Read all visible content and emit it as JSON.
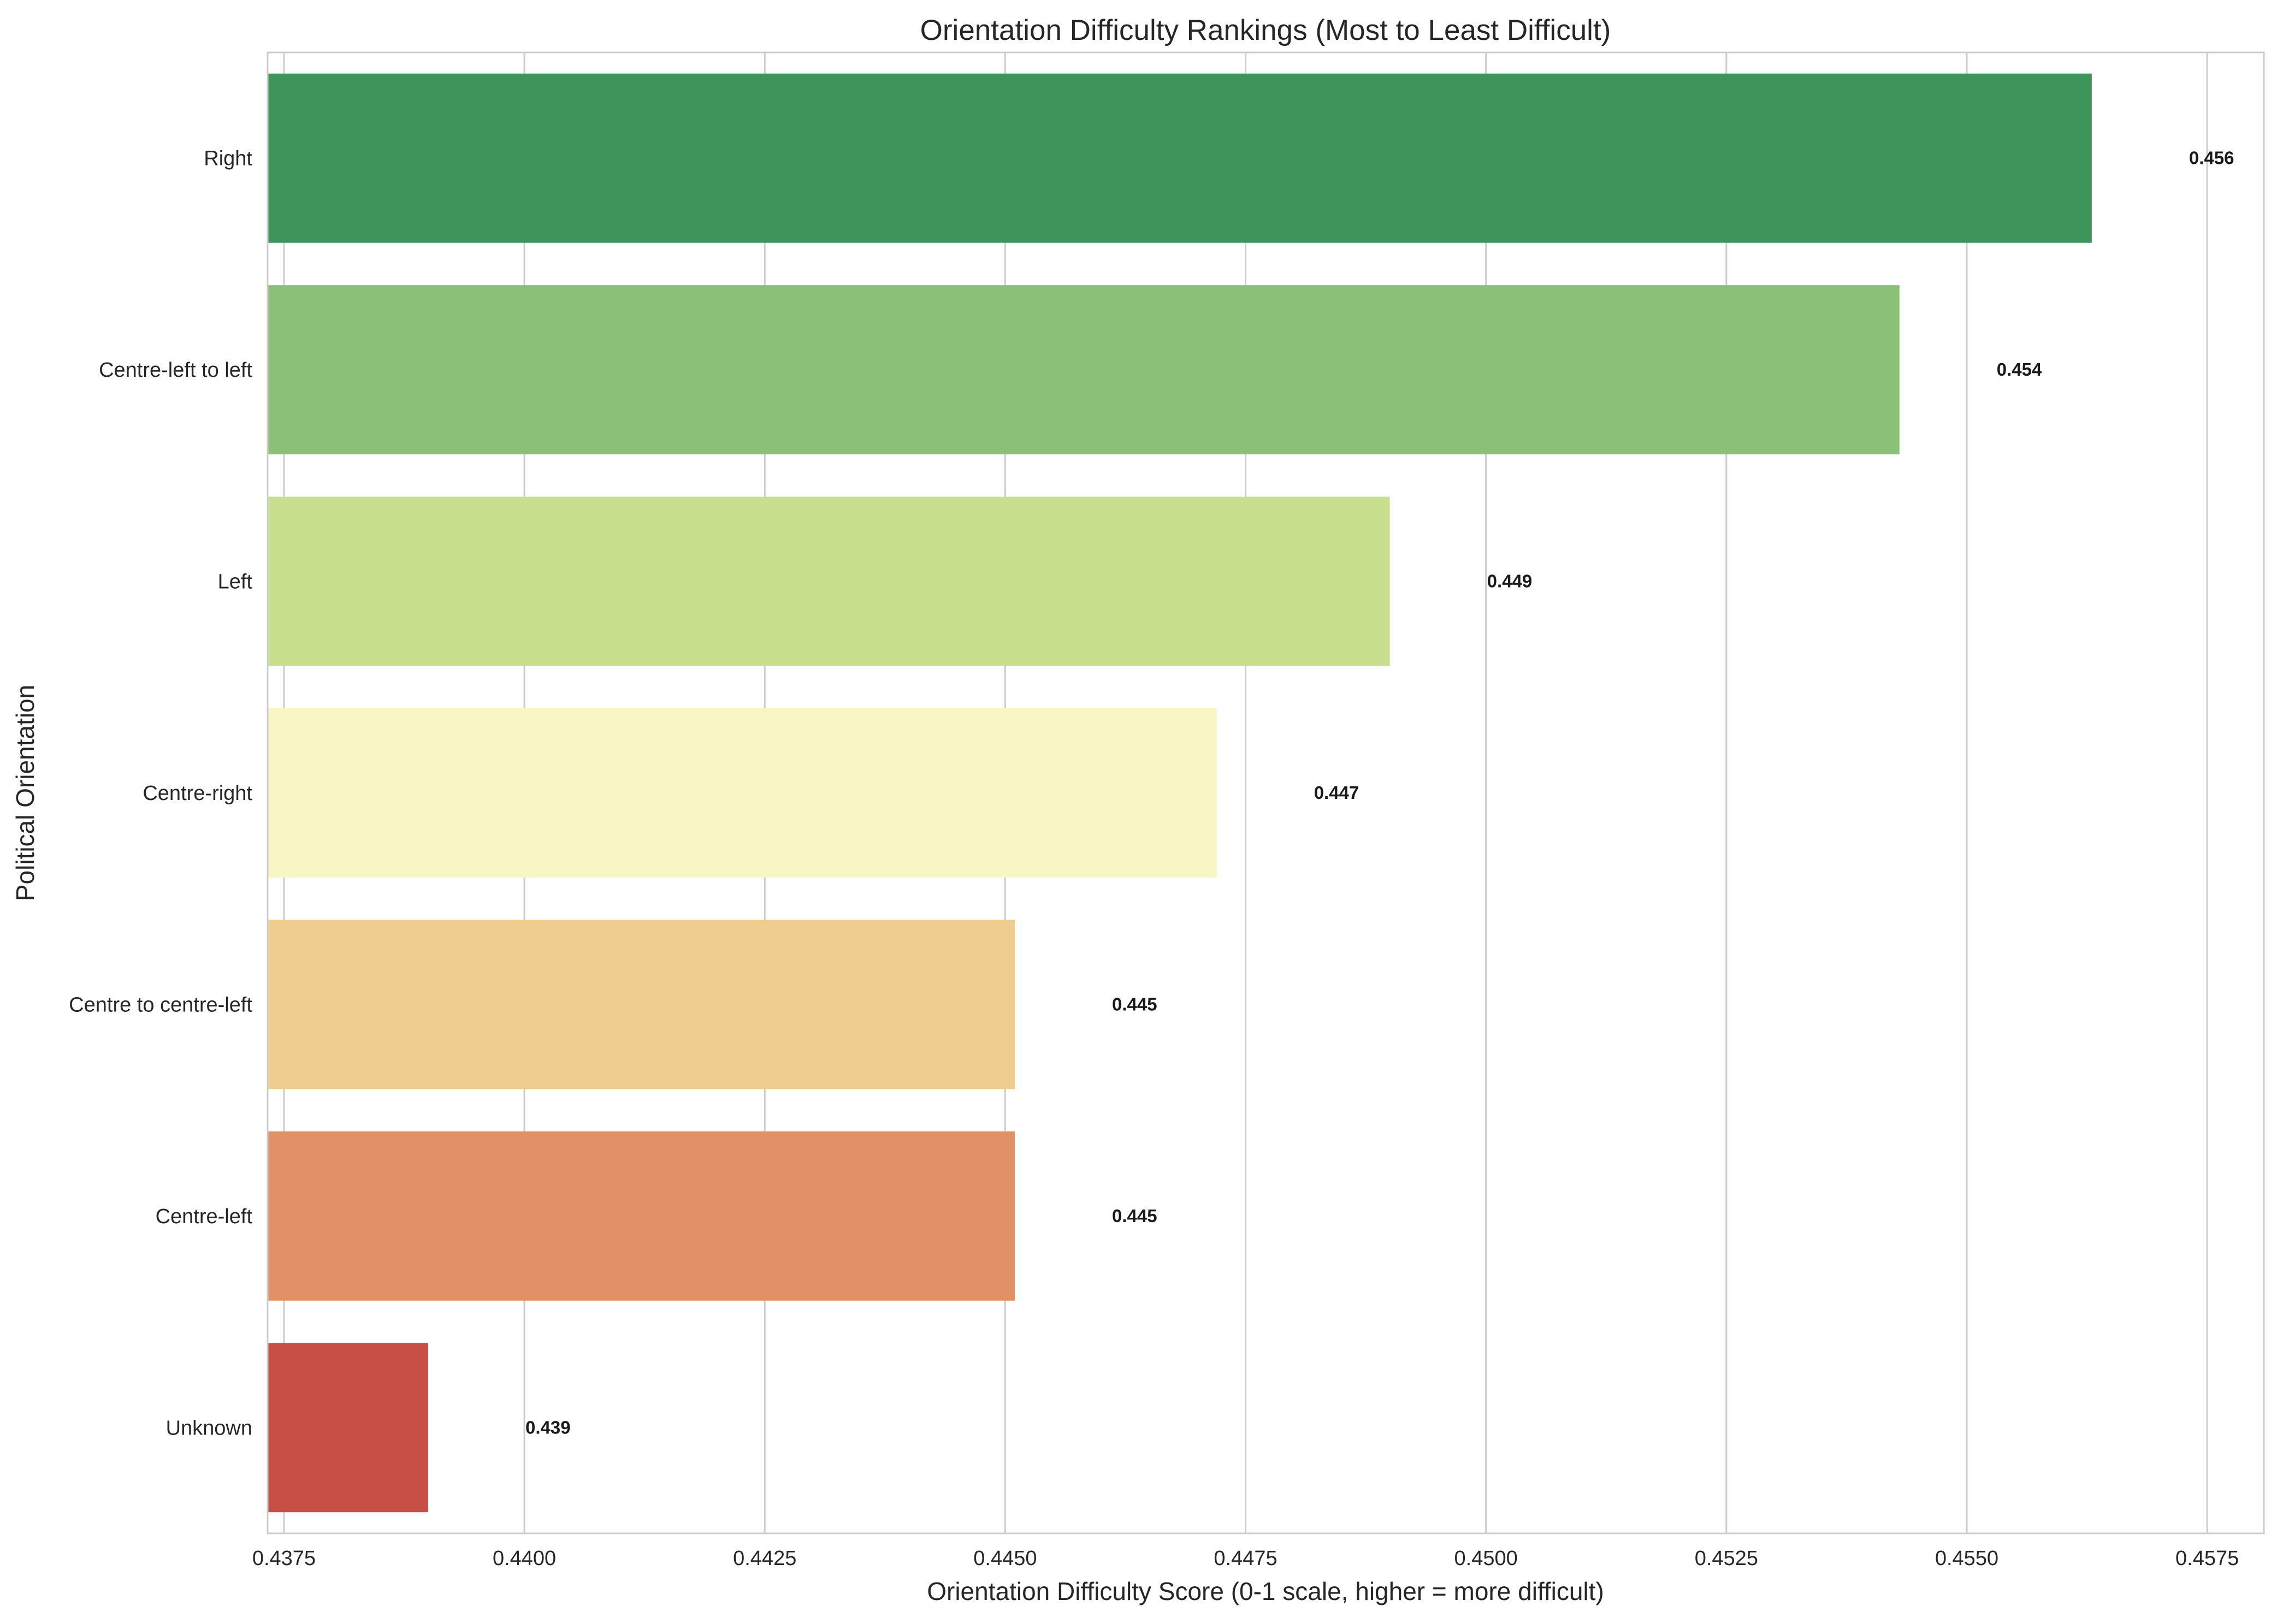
{
  "chart_data": {
    "type": "bar",
    "orientation": "horizontal",
    "title": "Orientation Difficulty Rankings (Most to Least Difficult)",
    "xlabel": "Orientation Difficulty Score (0-1 scale, higher = more difficult)",
    "ylabel": "Political Orientation",
    "xlim": [
      0.43733,
      0.45809
    ],
    "xticks": [
      0.4375,
      0.44,
      0.4425,
      0.445,
      0.4475,
      0.45,
      0.4525,
      0.455,
      0.4575
    ],
    "xtick_labels": [
      "0.4375",
      "0.4400",
      "0.4425",
      "0.4450",
      "0.4475",
      "0.4500",
      "0.4525",
      "0.4550",
      "0.4575"
    ],
    "grid": "vertical",
    "legend": "none",
    "categories": [
      "Right",
      "Centre-left to left",
      "Left",
      "Centre-right",
      "Centre to centre-left",
      "Centre-left",
      "Unknown"
    ],
    "values": [
      0.4563,
      0.4543,
      0.449,
      0.4472,
      0.4451,
      0.4451,
      0.439
    ],
    "value_labels": [
      "0.456",
      "0.454",
      "0.449",
      "0.447",
      "0.445",
      "0.445",
      "0.439"
    ],
    "colors": [
      "#3e955c",
      "#8bc176",
      "#c8df8e",
      "#f7f6c4",
      "#efcc8f",
      "#e29167",
      "#c65045"
    ]
  }
}
